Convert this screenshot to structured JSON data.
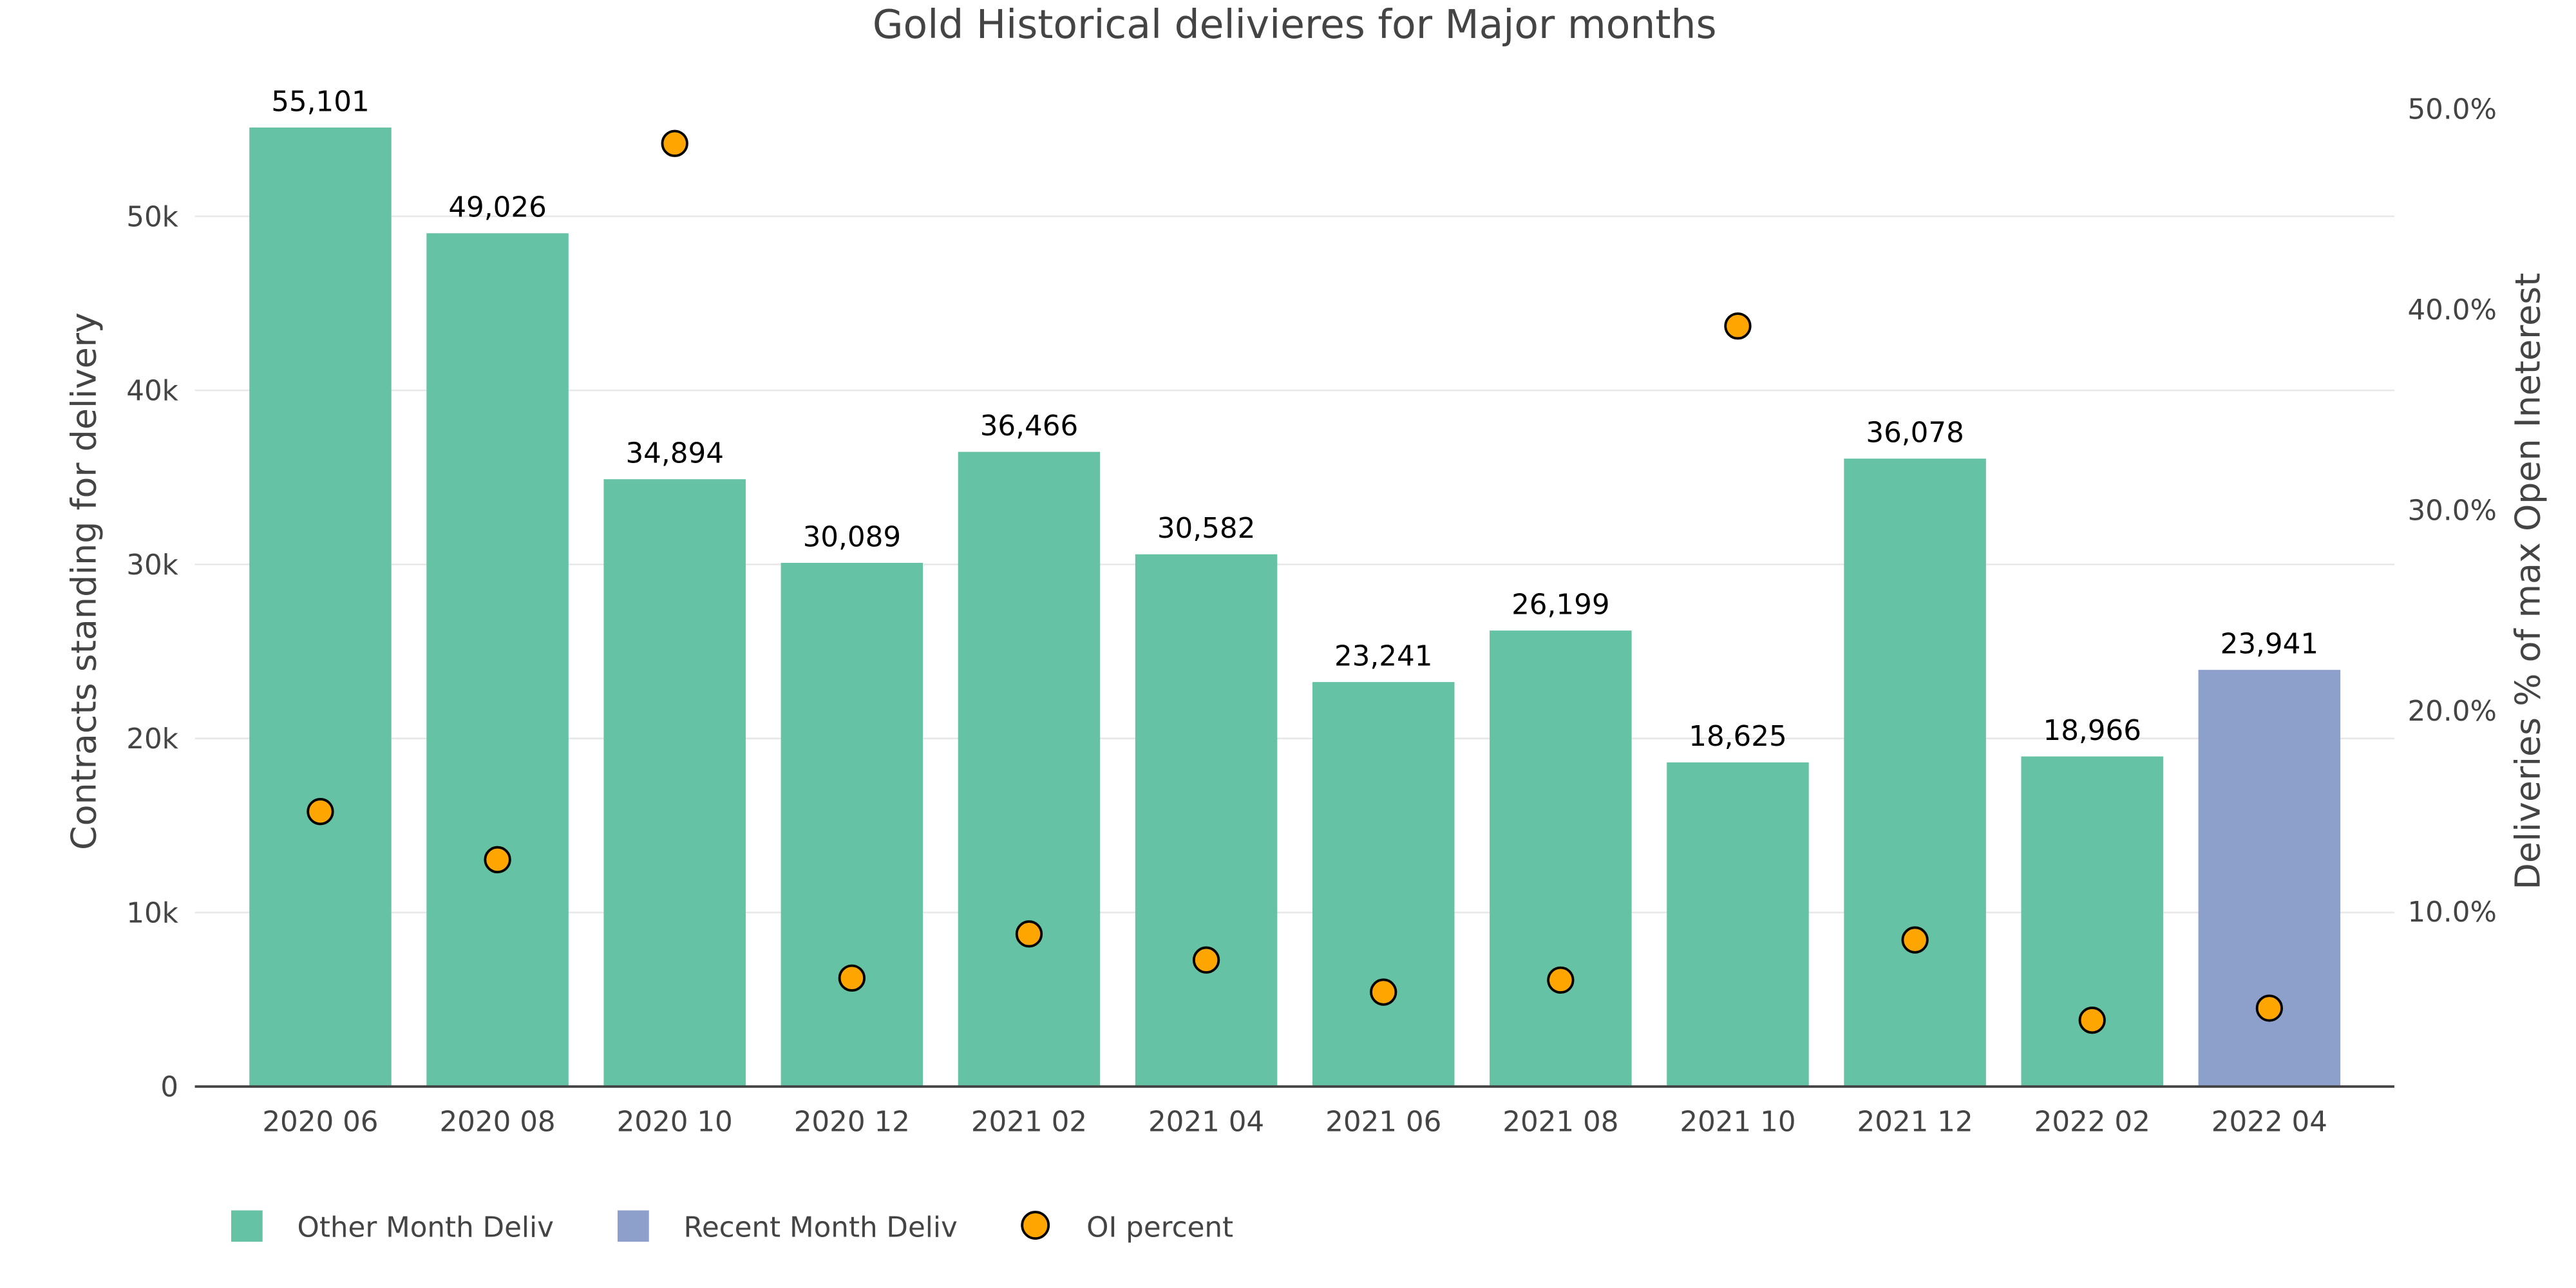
{
  "chart_data": {
    "type": "bar",
    "title": "Gold Historical delivieres for Major months",
    "xlabel": "",
    "ylabel": "Contracts standing for delivery",
    "y2label": "Deliveries % of max Open Ineterest",
    "ylim": [
      0,
      55101
    ],
    "y2lim": [
      0,
      50
    ],
    "categories": [
      "2020 06",
      "2020 08",
      "2020 10",
      "2020 12",
      "2021 02",
      "2021 04",
      "2021 06",
      "2021 08",
      "2021 10",
      "2021 12",
      "2022 02",
      "2022 04"
    ],
    "values": [
      55101,
      49026,
      34894,
      30089,
      36466,
      30582,
      23241,
      26199,
      18625,
      36078,
      18966,
      23941
    ],
    "value_labels": [
      "55,101",
      "49,026",
      "34,894",
      "30,089",
      "36,466",
      "30,582",
      "23,241",
      "26,199",
      "18,625",
      "36,078",
      "18,966",
      "23,941"
    ],
    "bar_series": [
      "other",
      "other",
      "other",
      "other",
      "other",
      "other",
      "other",
      "other",
      "other",
      "other",
      "other",
      "recent"
    ],
    "oi_percent": [
      14.9,
      12.5,
      48.2,
      6.6,
      8.8,
      7.5,
      5.9,
      6.5,
      39.1,
      8.5,
      4.5,
      5.1
    ],
    "yticks": [
      {
        "v": 0,
        "t": "0"
      },
      {
        "v": 10000,
        "t": "10k"
      },
      {
        "v": 20000,
        "t": "20k"
      },
      {
        "v": 30000,
        "t": "30k"
      },
      {
        "v": 40000,
        "t": "40k"
      },
      {
        "v": 50000,
        "t": "50k"
      }
    ],
    "y2ticks": [
      {
        "v": 10,
        "t": "10.0%"
      },
      {
        "v": 20,
        "t": "20.0%"
      },
      {
        "v": 30,
        "t": "30.0%"
      },
      {
        "v": 40,
        "t": "40.0%"
      },
      {
        "v": 50,
        "t": "50.0%"
      }
    ],
    "grid": true,
    "legend_position": "bottom-left",
    "legend": [
      {
        "name": "Other Month Deliv",
        "color": "#66c2a5",
        "kind": "bar"
      },
      {
        "name": "Recent Month Deliv",
        "color": "#8da0cb",
        "kind": "bar"
      },
      {
        "name": "OI percent",
        "color": "#ffa500",
        "kind": "marker"
      }
    ],
    "colors": {
      "other": "#66c2a5",
      "recent": "#8da0cb",
      "marker": "#ffa500"
    }
  }
}
